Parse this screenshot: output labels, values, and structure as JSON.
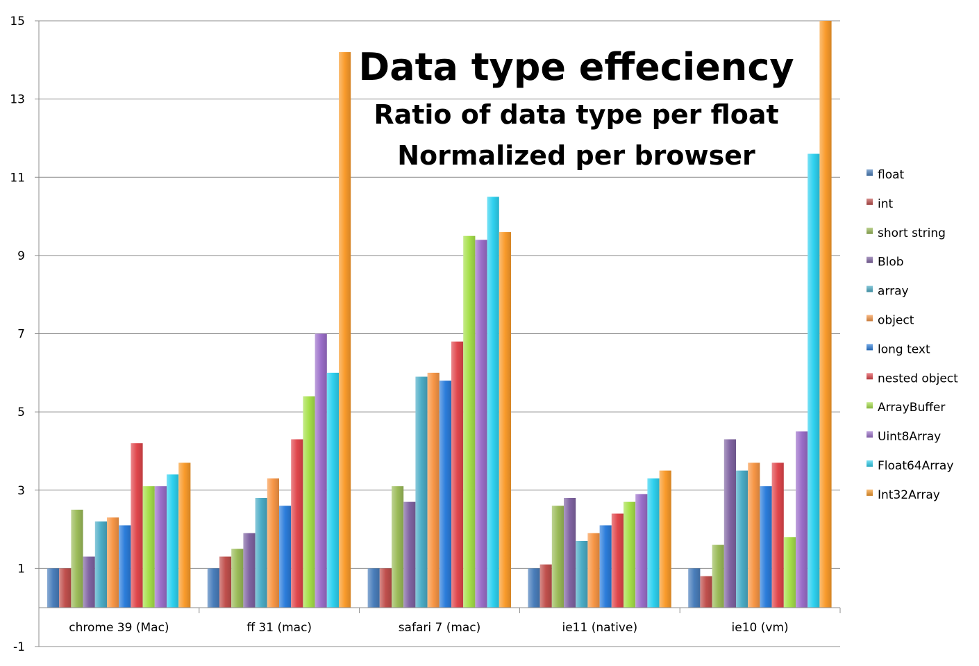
{
  "chart_data": {
    "type": "bar",
    "title": "Data type effeciency",
    "subtitle_lines": [
      "Ratio of data type per float",
      "Normalized per browser"
    ],
    "categories": [
      "chrome 39 (Mac)",
      "ff 31 (mac)",
      "safari 7 (mac)",
      "ie11 (native)",
      "ie10 (vm)"
    ],
    "ylim": [
      -1,
      15
    ],
    "yticks": [
      -1,
      1,
      3,
      5,
      7,
      9,
      11,
      13,
      15
    ],
    "ytick_labels": [
      "-1",
      "1",
      "3",
      "5",
      "7",
      "9",
      "11",
      "13",
      "15"
    ],
    "grid": true,
    "legend_position": "right",
    "series": [
      {
        "name": "float",
        "color": "#4a7ebb",
        "values": [
          1.0,
          1.0,
          1.0,
          1.0,
          1.0
        ]
      },
      {
        "name": "int",
        "color": "#c0504d",
        "values": [
          1.0,
          1.3,
          1.0,
          1.1,
          0.8
        ]
      },
      {
        "name": "short string",
        "color": "#9bbb59",
        "values": [
          2.5,
          1.5,
          3.1,
          2.6,
          1.6
        ]
      },
      {
        "name": "Blob",
        "color": "#8064a2",
        "values": [
          1.3,
          1.9,
          2.7,
          2.8,
          4.3
        ]
      },
      {
        "name": "array",
        "color": "#4bacc6",
        "values": [
          2.2,
          2.8,
          5.9,
          1.7,
          3.5
        ]
      },
      {
        "name": "object",
        "color": "#f79646",
        "values": [
          2.3,
          3.3,
          6.0,
          1.9,
          3.7
        ]
      },
      {
        "name": "long text",
        "color": "#2c7ddb",
        "values": [
          2.1,
          2.6,
          5.8,
          2.1,
          3.1
        ]
      },
      {
        "name": "nested object",
        "color": "#e0474c",
        "values": [
          4.2,
          4.3,
          6.8,
          2.4,
          3.7
        ]
      },
      {
        "name": "ArrayBuffer",
        "color": "#a6e04a",
        "values": [
          3.1,
          5.4,
          9.5,
          2.7,
          1.8
        ]
      },
      {
        "name": "Uint8Array",
        "color": "#9b6fc9",
        "values": [
          3.1,
          7.0,
          9.4,
          2.9,
          4.5
        ]
      },
      {
        "name": "Float64Array",
        "color": "#2fd1ef",
        "values": [
          3.4,
          6.0,
          10.5,
          3.3,
          11.6
        ]
      },
      {
        "name": "Int32Array",
        "color": "#f99b2c",
        "values": [
          3.7,
          14.2,
          9.6,
          3.5,
          15.0
        ]
      }
    ]
  }
}
